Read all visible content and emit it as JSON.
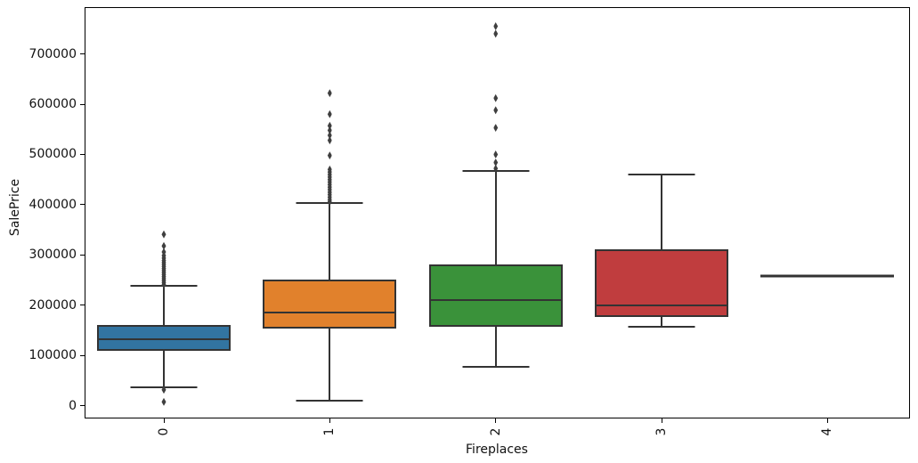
{
  "chart_data": {
    "type": "box",
    "title": "",
    "xlabel": "Fireplaces",
    "ylabel": "SalePrice",
    "categories": [
      "0",
      "1",
      "2",
      "3",
      "4"
    ],
    "ylim": [
      -25000,
      793000
    ],
    "yticks": [
      0,
      100000,
      200000,
      300000,
      400000,
      500000,
      600000,
      700000
    ],
    "grid": false,
    "legend": null,
    "line_color": "#333333",
    "flier_color": "#3f3f3f",
    "boxes": [
      {
        "category": "0",
        "color": "#3274a1",
        "whislo": 37000,
        "q1": 110000,
        "med": 133000,
        "q3": 161000,
        "whishi": 239000,
        "fliers": [
          341000,
          318000,
          306000,
          299000,
          294000,
          289000,
          285000,
          281000,
          277000,
          273000,
          269000,
          265000,
          261000,
          257000,
          253000,
          249000,
          245000,
          241000,
          32000,
          8000
        ]
      },
      {
        "category": "1",
        "color": "#e1812c",
        "whislo": 11000,
        "q1": 153000,
        "med": 186000,
        "q3": 252000,
        "whishi": 403000,
        "fliers": [
          622000,
          580000,
          557000,
          548000,
          538000,
          528000,
          498000,
          470000,
          465000,
          460000,
          455000,
          450000,
          445000,
          440000,
          435000,
          430000,
          425000,
          420000,
          415000,
          410000,
          406000
        ]
      },
      {
        "category": "2",
        "color": "#3a923a",
        "whislo": 78000,
        "q1": 157000,
        "med": 210000,
        "q3": 282000,
        "whishi": 467000,
        "fliers": [
          755000,
          740000,
          612000,
          588000,
          553000,
          500000,
          484000,
          472000
        ]
      },
      {
        "category": "3",
        "color": "#c03d3e",
        "whislo": 157000,
        "q1": 176000,
        "med": 199000,
        "q3": 311000,
        "whishi": 460000,
        "fliers": []
      },
      {
        "category": "4",
        "color": "#9372b2",
        "whislo": 258000,
        "q1": 258000,
        "med": 258000,
        "q3": 258000,
        "whishi": 258000,
        "fliers": []
      }
    ]
  }
}
